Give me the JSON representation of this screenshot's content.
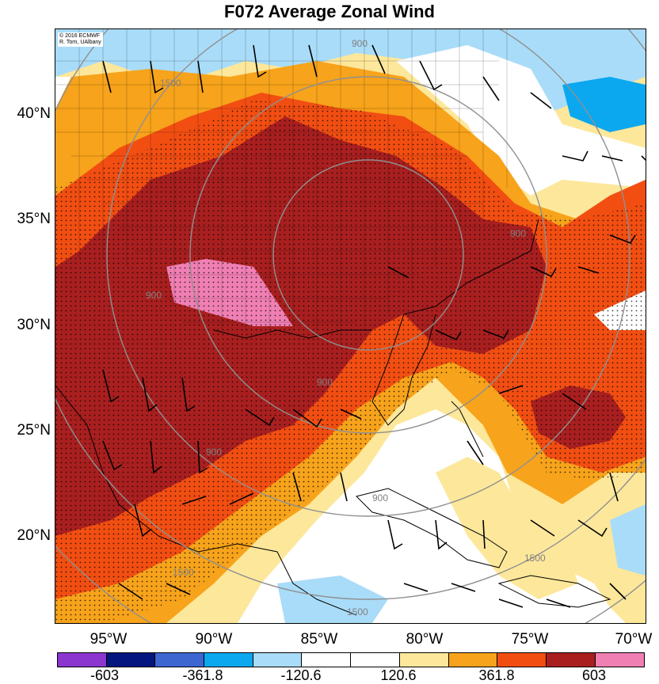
{
  "title": "F072 Average Zonal Wind",
  "credit": {
    "line1": "© 2016 ECMWF",
    "line2": "R. Torn, UAlbany"
  },
  "latitude_labels": [
    "40°N",
    "35°N",
    "30°N",
    "25°N",
    "20°N"
  ],
  "longitude_labels": [
    "95°W",
    "90°W",
    "85°W",
    "80°W",
    "75°W",
    "70°W"
  ],
  "contour_labels": [
    "900",
    "900",
    "900",
    "900",
    "900",
    "900",
    "1500",
    "1500",
    "1500",
    "1500"
  ],
  "colorbar": {
    "colors": [
      "#8a36cf",
      "#04157f",
      "#3d66d1",
      "#0ba8f0",
      "#a9dcf8",
      "#ffffff",
      "#ffffff",
      "#fde79a",
      "#f7a31b",
      "#f24e12",
      "#a91f1f",
      "#f07fb3"
    ],
    "labels": [
      "-603",
      "-361.8",
      "-120.6",
      "120.6",
      "361.8",
      "603"
    ]
  },
  "map_colors": {
    "white": "#ffffff",
    "light_yellow": "#fde79a",
    "orange": "#f7a31b",
    "red_orange": "#f24e12",
    "dark_red": "#a91f1f",
    "pink": "#f07fb3",
    "light_blue": "#a9dcf8",
    "cyan": "#0ba8f0",
    "blue": "#3d66d1"
  }
}
